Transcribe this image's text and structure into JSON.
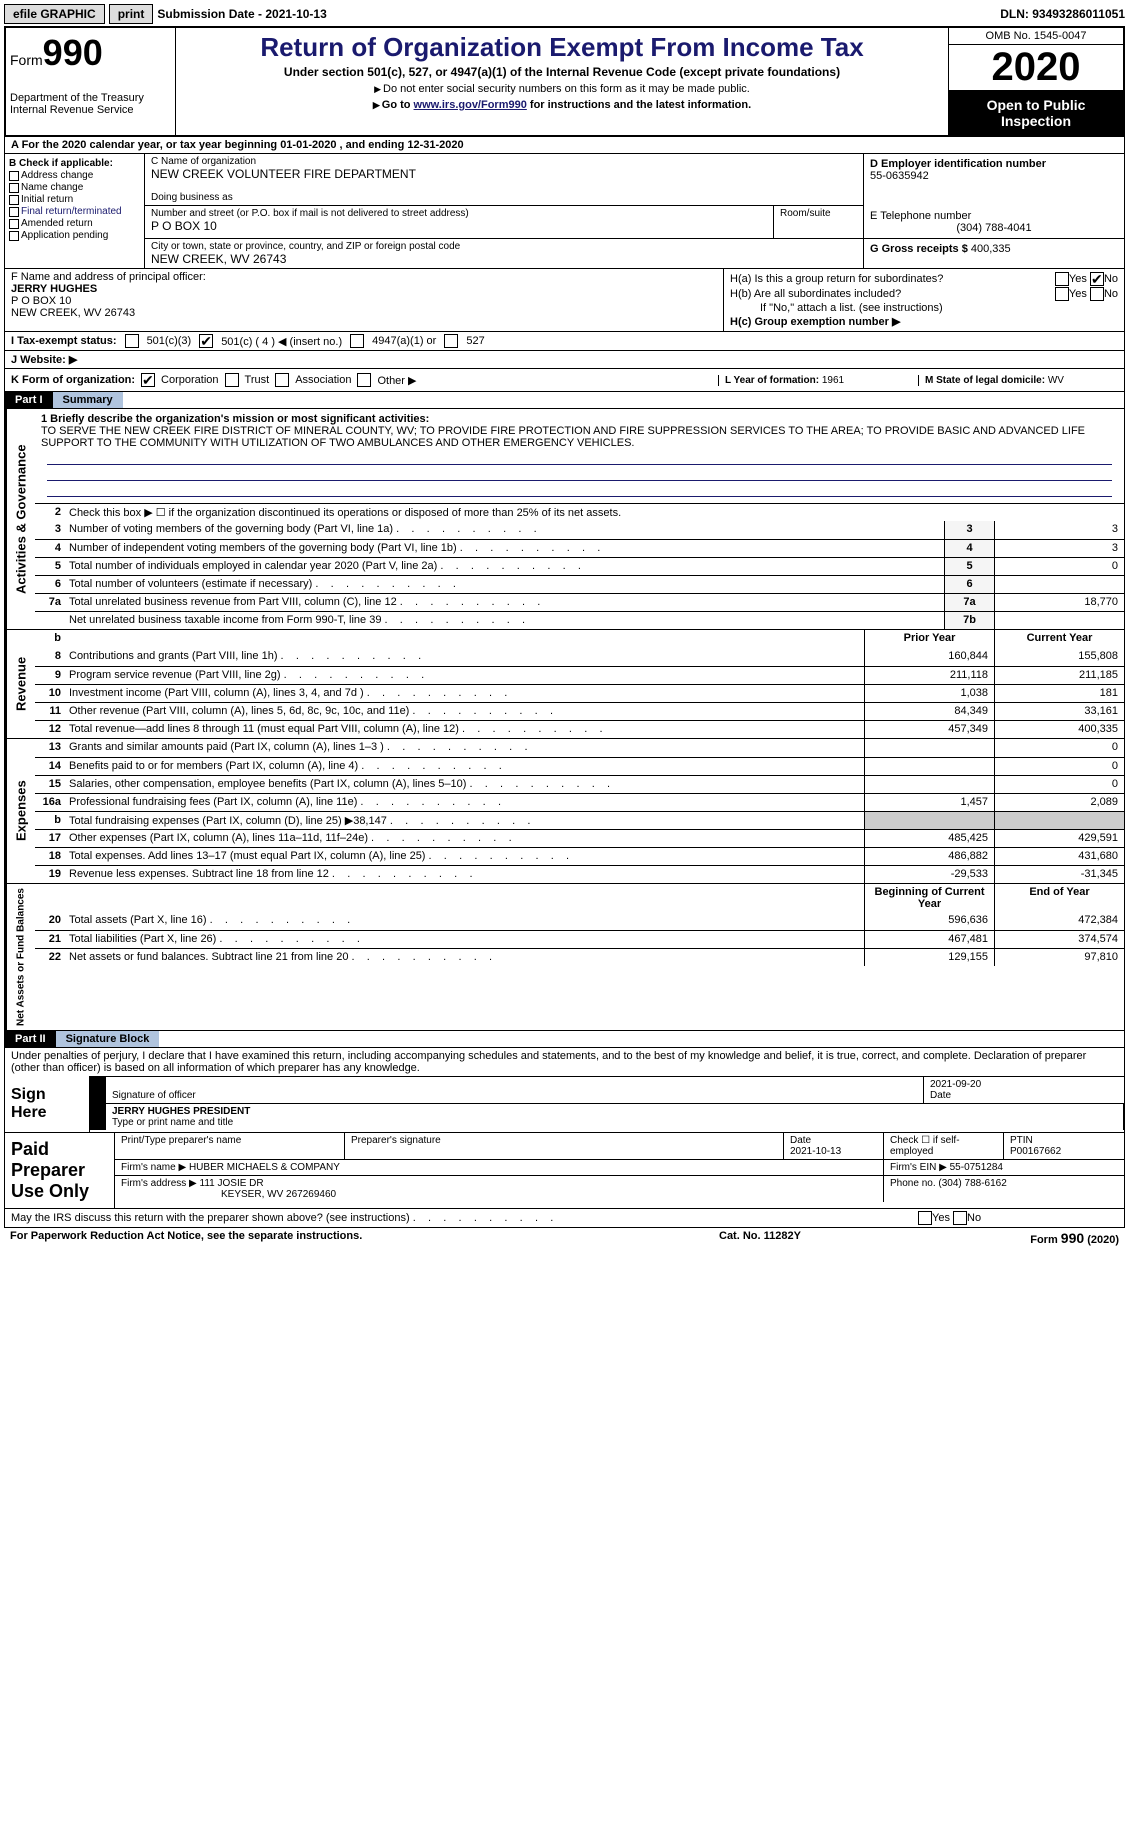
{
  "topbar": {
    "efile": "efile GRAPHIC",
    "print": "print",
    "submission": "Submission Date - 2021-10-13",
    "dln": "DLN: 93493286011051"
  },
  "header": {
    "form_prefix": "Form",
    "form_number": "990",
    "dept": "Department of the Treasury\nInternal Revenue Service",
    "title": "Return of Organization Exempt From Income Tax",
    "sub1": "Under section 501(c), 527, or 4947(a)(1) of the Internal Revenue Code (except private foundations)",
    "sub2": "Do not enter social security numbers on this form as it may be made public.",
    "sub3_pre": "Go to ",
    "sub3_link": "www.irs.gov/Form990",
    "sub3_post": " for instructions and the latest information.",
    "omb": "OMB No. 1545-0047",
    "year": "2020",
    "open_to": "Open to Public Inspection"
  },
  "row_a": "A For the 2020 calendar year, or tax year beginning 01-01-2020    , and ending 12-31-2020",
  "section_b": {
    "label": "B Check if applicable:",
    "items": [
      "Address change",
      "Name change",
      "Initial return",
      "Final return/terminated",
      "Amended return",
      "Application pending"
    ]
  },
  "section_c": {
    "name_label": "C Name of organization",
    "name": "NEW CREEK VOLUNTEER FIRE DEPARTMENT",
    "dba_label": "Doing business as",
    "dba": "",
    "addr_label": "Number and street (or P.O. box if mail is not delivered to street address)",
    "addr": "P O BOX 10",
    "room_label": "Room/suite",
    "city_label": "City or town, state or province, country, and ZIP or foreign postal code",
    "city": "NEW CREEK, WV  26743"
  },
  "section_d": {
    "ein_label": "D Employer identification number",
    "ein": "55-0635942",
    "phone_label": "E Telephone number",
    "phone": "(304) 788-4041",
    "gross_label": "G Gross receipts $",
    "gross": "400,335"
  },
  "section_f": {
    "label": "F  Name and address of principal officer:",
    "name": "JERRY HUGHES",
    "addr1": "P O BOX 10",
    "addr2": "NEW CREEK, WV  26743"
  },
  "section_h": {
    "ha": "H(a)  Is this a group return for subordinates?",
    "hb": "H(b)  Are all subordinates included?",
    "hb_note": "If \"No,\" attach a list. (see instructions)",
    "hc": "H(c)  Group exemption number ▶"
  },
  "section_i": {
    "label": "I  Tax-exempt status:",
    "opts": [
      "501(c)(3)",
      "501(c) ( 4 ) ◀ (insert no.)",
      "4947(a)(1) or",
      "527"
    ]
  },
  "section_j": "J  Website: ▶",
  "section_k": {
    "label": "K Form of organization:",
    "opts": [
      "Corporation",
      "Trust",
      "Association",
      "Other ▶"
    ],
    "l_label": "L Year of formation:",
    "l_val": "1961",
    "m_label": "M State of legal domicile:",
    "m_val": "WV"
  },
  "part1": {
    "hdr": "Part I",
    "title": "Summary",
    "mission_label": "1 Briefly describe the organization's mission or most significant activities:",
    "mission": "TO SERVE THE NEW CREEK FIRE DISTRICT OF MINERAL COUNTY, WV; TO PROVIDE FIRE PROTECTION AND FIRE SUPPRESSION SERVICES TO THE AREA; TO PROVIDE BASIC AND ADVANCED LIFE SUPPORT TO THE COMMUNITY WITH UTILIZATION OF TWO AMBULANCES AND OTHER EMERGENCY VEHICLES.",
    "side_gov": "Activities & Governance",
    "side_rev": "Revenue",
    "side_exp": "Expenses",
    "side_net": "Net Assets or Fund Balances",
    "line2": "Check this box ▶ ☐ if the organization discontinued its operations or disposed of more than 25% of its net assets.",
    "lines_gov": [
      {
        "n": "3",
        "d": "Number of voting members of the governing body (Part VI, line 1a)",
        "c": "3",
        "v": "3"
      },
      {
        "n": "4",
        "d": "Number of independent voting members of the governing body (Part VI, line 1b)",
        "c": "4",
        "v": "3"
      },
      {
        "n": "5",
        "d": "Total number of individuals employed in calendar year 2020 (Part V, line 2a)",
        "c": "5",
        "v": "0"
      },
      {
        "n": "6",
        "d": "Total number of volunteers (estimate if necessary)",
        "c": "6",
        "v": ""
      },
      {
        "n": "7a",
        "d": "Total unrelated business revenue from Part VIII, column (C), line 12",
        "c": "7a",
        "v": "18,770"
      },
      {
        "n": "",
        "d": "Net unrelated business taxable income from Form 990-T, line 39",
        "c": "7b",
        "v": ""
      }
    ],
    "col_prior": "Prior Year",
    "col_curr": "Current Year",
    "lines_rev": [
      {
        "n": "8",
        "d": "Contributions and grants (Part VIII, line 1h)",
        "p": "160,844",
        "c": "155,808"
      },
      {
        "n": "9",
        "d": "Program service revenue (Part VIII, line 2g)",
        "p": "211,118",
        "c": "211,185"
      },
      {
        "n": "10",
        "d": "Investment income (Part VIII, column (A), lines 3, 4, and 7d )",
        "p": "1,038",
        "c": "181"
      },
      {
        "n": "11",
        "d": "Other revenue (Part VIII, column (A), lines 5, 6d, 8c, 9c, 10c, and 11e)",
        "p": "84,349",
        "c": "33,161"
      },
      {
        "n": "12",
        "d": "Total revenue—add lines 8 through 11 (must equal Part VIII, column (A), line 12)",
        "p": "457,349",
        "c": "400,335"
      }
    ],
    "lines_exp": [
      {
        "n": "13",
        "d": "Grants and similar amounts paid (Part IX, column (A), lines 1–3 )",
        "p": "",
        "c": "0"
      },
      {
        "n": "14",
        "d": "Benefits paid to or for members (Part IX, column (A), line 4)",
        "p": "",
        "c": "0"
      },
      {
        "n": "15",
        "d": "Salaries, other compensation, employee benefits (Part IX, column (A), lines 5–10)",
        "p": "",
        "c": "0"
      },
      {
        "n": "16a",
        "d": "Professional fundraising fees (Part IX, column (A), line 11e)",
        "p": "1,457",
        "c": "2,089"
      },
      {
        "n": "b",
        "d": "Total fundraising expenses (Part IX, column (D), line 25) ▶38,147",
        "p": "",
        "c": ""
      },
      {
        "n": "17",
        "d": "Other expenses (Part IX, column (A), lines 11a–11d, 11f–24e)",
        "p": "485,425",
        "c": "429,591"
      },
      {
        "n": "18",
        "d": "Total expenses. Add lines 13–17 (must equal Part IX, column (A), line 25)",
        "p": "486,882",
        "c": "431,680"
      },
      {
        "n": "19",
        "d": "Revenue less expenses. Subtract line 18 from line 12",
        "p": "-29,533",
        "c": "-31,345"
      }
    ],
    "col_beg": "Beginning of Current Year",
    "col_end": "End of Year",
    "lines_net": [
      {
        "n": "20",
        "d": "Total assets (Part X, line 16)",
        "p": "596,636",
        "c": "472,384"
      },
      {
        "n": "21",
        "d": "Total liabilities (Part X, line 26)",
        "p": "467,481",
        "c": "374,574"
      },
      {
        "n": "22",
        "d": "Net assets or fund balances. Subtract line 21 from line 20",
        "p": "129,155",
        "c": "97,810"
      }
    ]
  },
  "part2": {
    "hdr": "Part II",
    "title": "Signature Block",
    "intro": "Under penalties of perjury, I declare that I have examined this return, including accompanying schedules and statements, and to the best of my knowledge and belief, it is true, correct, and complete. Declaration of preparer (other than officer) is based on all information of which preparer has any knowledge.",
    "sign_here": "Sign Here",
    "sig_officer": "Signature of officer",
    "sig_date": "2021-09-20",
    "date_lbl": "Date",
    "officer_name": "JERRY HUGHES PRESIDENT",
    "name_title_lbl": "Type or print name and title",
    "paid_prep": "Paid Preparer Use Only",
    "prep_name_lbl": "Print/Type preparer's name",
    "prep_sig_lbl": "Preparer's signature",
    "prep_date_lbl": "Date",
    "prep_date": "2021-10-13",
    "self_emp": "Check ☐ if self-employed",
    "ptin_lbl": "PTIN",
    "ptin": "P00167662",
    "firm_name_lbl": "Firm's name    ▶",
    "firm_name": "HUBER MICHAELS & COMPANY",
    "firm_ein_lbl": "Firm's EIN ▶",
    "firm_ein": "55-0751284",
    "firm_addr_lbl": "Firm's address ▶",
    "firm_addr1": "111 JOSIE DR",
    "firm_addr2": "KEYSER, WV  267269460",
    "firm_phone_lbl": "Phone no.",
    "firm_phone": "(304) 788-6162",
    "discuss": "May the IRS discuss this return with the preparer shown above? (see instructions)"
  },
  "footer": {
    "left": "For Paperwork Reduction Act Notice, see the separate instructions.",
    "mid": "Cat. No. 11282Y",
    "right": "Form 990 (2020)"
  },
  "colors": {
    "accent": "#1a1a6e",
    "part_title_bg": "#b0c4de"
  }
}
